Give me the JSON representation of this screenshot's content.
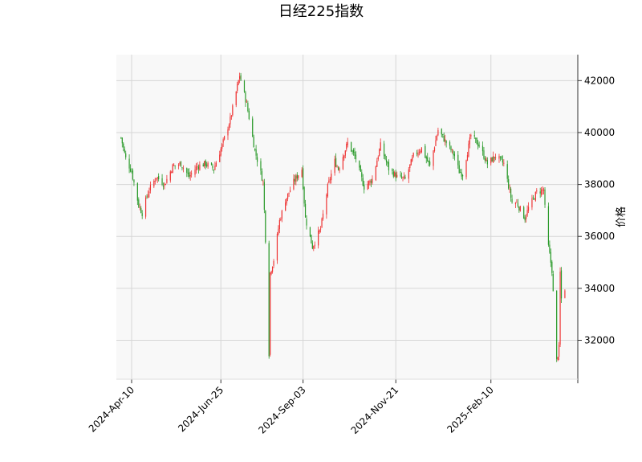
{
  "chart_data": {
    "type": "candlestick",
    "title": "日经225指数",
    "xlabel": "",
    "ylabel": "价格",
    "y_axis_side": "right",
    "ylim": [
      30500,
      43000
    ],
    "yticks": [
      32000,
      34000,
      36000,
      38000,
      40000,
      42000
    ],
    "x_range": [
      "2024-03-28",
      "2025-04-25"
    ],
    "xticks": [
      {
        "date": "2024-04-10",
        "label": "2024-Apr-10"
      },
      {
        "date": "2024-06-25",
        "label": "2024-Jun-25"
      },
      {
        "date": "2024-09-03",
        "label": "2024-Sep-03"
      },
      {
        "date": "2024-11-21",
        "label": "2024-Nov-21"
      },
      {
        "date": "2025-02-10",
        "label": "2025-Feb-10"
      },
      {
        "date": "2025-04-25",
        "label": ""
      }
    ],
    "grid": true,
    "colors": {
      "up": "#ee3333",
      "down": "#2a9a2a",
      "plot_bg": "#f8f8f8",
      "grid": "#d6d6d6"
    },
    "keypoints": [
      [
        "2024-04-01",
        39800
      ],
      [
        "2024-04-05",
        39000
      ],
      [
        "2024-04-10",
        38500
      ],
      [
        "2024-04-16",
        37200
      ],
      [
        "2024-04-19",
        36900
      ],
      [
        "2024-04-24",
        37700
      ],
      [
        "2024-05-01",
        38300
      ],
      [
        "2024-05-08",
        38000
      ],
      [
        "2024-05-15",
        38700
      ],
      [
        "2024-05-22",
        38800
      ],
      [
        "2024-05-29",
        38300
      ],
      [
        "2024-06-05",
        38700
      ],
      [
        "2024-06-12",
        38800
      ],
      [
        "2024-06-19",
        38600
      ],
      [
        "2024-06-26",
        39500
      ],
      [
        "2024-07-03",
        40500
      ],
      [
        "2024-07-11",
        42200
      ],
      [
        "2024-07-17",
        41100
      ],
      [
        "2024-07-24",
        39300
      ],
      [
        "2024-07-31",
        38100
      ],
      [
        "2024-08-02",
        35900
      ],
      [
        "2024-08-05",
        31500
      ],
      [
        "2024-08-06",
        34600
      ],
      [
        "2024-08-09",
        35100
      ],
      [
        "2024-08-14",
        36600
      ],
      [
        "2024-08-19",
        37400
      ],
      [
        "2024-08-26",
        38100
      ],
      [
        "2024-09-02",
        38600
      ],
      [
        "2024-09-05",
        36700
      ],
      [
        "2024-09-11",
        35600
      ],
      [
        "2024-09-18",
        36300
      ],
      [
        "2024-09-24",
        37900
      ],
      [
        "2024-09-30",
        38900
      ],
      [
        "2024-10-03",
        38600
      ],
      [
        "2024-10-11",
        39600
      ],
      [
        "2024-10-18",
        39000
      ],
      [
        "2024-10-25",
        37900
      ],
      [
        "2024-11-01",
        38200
      ],
      [
        "2024-11-08",
        39500
      ],
      [
        "2024-11-15",
        38600
      ],
      [
        "2024-11-22",
        38300
      ],
      [
        "2024-11-29",
        38200
      ],
      [
        "2024-12-06",
        39100
      ],
      [
        "2024-12-13",
        39400
      ],
      [
        "2024-12-20",
        38700
      ],
      [
        "2024-12-27",
        40100
      ],
      [
        "2025-01-06",
        39400
      ],
      [
        "2025-01-10",
        39100
      ],
      [
        "2025-01-14",
        38500
      ],
      [
        "2025-01-17",
        38400
      ],
      [
        "2025-01-24",
        39900
      ],
      [
        "2025-01-31",
        39500
      ],
      [
        "2025-02-07",
        38800
      ],
      [
        "2025-02-14",
        39100
      ],
      [
        "2025-02-21",
        38800
      ],
      [
        "2025-02-28",
        37300
      ],
      [
        "2025-03-04",
        37300
      ],
      [
        "2025-03-11",
        36700
      ],
      [
        "2025-03-14",
        37100
      ],
      [
        "2025-03-21",
        37700
      ],
      [
        "2025-03-27",
        37800
      ],
      [
        "2025-03-28",
        37100
      ],
      [
        "2025-03-31",
        35600
      ],
      [
        "2025-04-03",
        34700
      ],
      [
        "2025-04-07",
        31200
      ],
      [
        "2025-04-09",
        31700
      ],
      [
        "2025-04-10",
        34600
      ],
      [
        "2025-04-11",
        33600
      ],
      [
        "2025-04-14",
        34000
      ]
    ]
  }
}
